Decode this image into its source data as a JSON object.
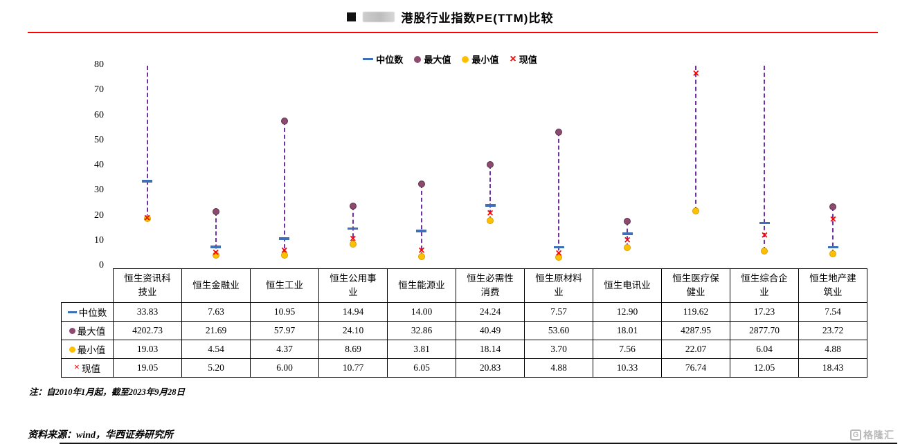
{
  "header": {
    "title": "港股行业指数PE(TTM)比较"
  },
  "icons": {
    "x_glyph": "×",
    "watermark_glyph": "G",
    "legend_median": "dash-icon",
    "legend_max": "circle-icon",
    "legend_min": "circle-icon",
    "legend_current": "x-icon"
  },
  "colors": {
    "accent_rule": "#FE0000",
    "median": "#3E6FB8",
    "max": "#8B4A6E",
    "min": "#FFC000",
    "current": "#FF0000",
    "range_line": "#7030A0",
    "table_border": "#000000",
    "watermark": "#B9B9B9"
  },
  "legend": {
    "items": [
      {
        "label": "中位数",
        "marker": "dash"
      },
      {
        "label": "最大值",
        "marker": "circle-max"
      },
      {
        "label": "最小值",
        "marker": "circle-min"
      },
      {
        "label": "现值",
        "marker": "x"
      }
    ]
  },
  "chart_data": {
    "type": "scatter",
    "subtype": "high-low-range-with-markers",
    "title": "港股行业指数PE(TTM)比较",
    "categories": [
      "恒生资讯科技业",
      "恒生金融业",
      "恒生工业",
      "恒生公用事业",
      "恒生能源业",
      "恒生必需性消费",
      "恒生原材料业",
      "恒生电讯业",
      "恒生医疗保健业",
      "恒生综合企业",
      "恒生地产建筑业"
    ],
    "series": [
      {
        "role": "median",
        "name": "中位数",
        "marker": "dash",
        "values": [
          33.83,
          7.63,
          10.95,
          14.94,
          14.0,
          24.24,
          7.57,
          12.9,
          119.62,
          17.23,
          7.54
        ]
      },
      {
        "role": "max",
        "name": "最大值",
        "marker": "circle",
        "values": [
          4202.73,
          21.69,
          57.97,
          24.1,
          32.86,
          40.49,
          53.6,
          18.01,
          4287.95,
          2877.7,
          23.72
        ]
      },
      {
        "role": "min",
        "name": "最小值",
        "marker": "circle",
        "values": [
          19.03,
          4.54,
          4.37,
          8.69,
          3.81,
          18.14,
          3.7,
          7.56,
          22.07,
          6.04,
          4.88
        ]
      },
      {
        "role": "current",
        "name": "现值",
        "marker": "x",
        "values": [
          19.05,
          5.2,
          6.0,
          10.77,
          6.05,
          20.83,
          4.88,
          10.33,
          76.74,
          12.05,
          18.43
        ]
      }
    ],
    "xlabel": "",
    "ylabel": "",
    "ylim": [
      0,
      80
    ],
    "yticks": [
      0,
      10,
      20,
      30,
      40,
      50,
      60,
      70,
      80
    ],
    "grid": false,
    "legend_position": "top"
  },
  "table": {
    "columns": [
      "恒生资讯科技业",
      "恒生金融业",
      "恒生工业",
      "恒生公用事业",
      "恒生能源业",
      "恒生必需性消费",
      "恒生原材料业",
      "恒生电讯业",
      "恒生医疗保健业",
      "恒生综合企业",
      "恒生地产建筑业"
    ],
    "rows": [
      {
        "label": "中位数",
        "marker": "dash",
        "values": [
          "33.83",
          "7.63",
          "10.95",
          "14.94",
          "14.00",
          "24.24",
          "7.57",
          "12.90",
          "119.62",
          "17.23",
          "7.54"
        ]
      },
      {
        "label": "最大值",
        "marker": "circle-max",
        "values": [
          "4202.73",
          "21.69",
          "57.97",
          "24.10",
          "32.86",
          "40.49",
          "53.60",
          "18.01",
          "4287.95",
          "2877.70",
          "23.72"
        ]
      },
      {
        "label": "最小值",
        "marker": "circle-min",
        "values": [
          "19.03",
          "4.54",
          "4.37",
          "8.69",
          "3.81",
          "18.14",
          "3.70",
          "7.56",
          "22.07",
          "6.04",
          "4.88"
        ]
      },
      {
        "label": "现值",
        "marker": "x",
        "values": [
          "19.05",
          "5.20",
          "6.00",
          "10.77",
          "6.05",
          "20.83",
          "4.88",
          "10.33",
          "76.74",
          "12.05",
          "18.43"
        ]
      }
    ]
  },
  "notes": {
    "period": "注：自2010年1月起，截至2023年9月28日",
    "source": "资料来源：wind，华西证券研究所"
  },
  "watermark": {
    "text": "格隆汇"
  }
}
